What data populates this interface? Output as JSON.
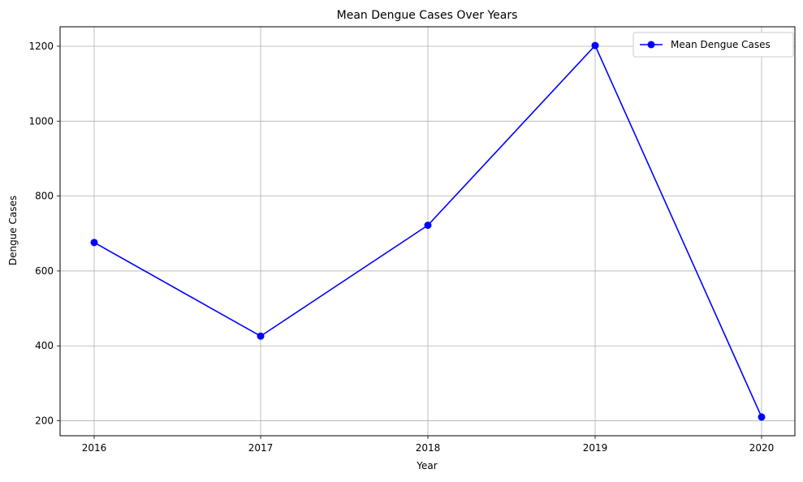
{
  "chart_data": {
    "type": "line",
    "title": "Mean Dengue Cases Over Years",
    "xlabel": "Year",
    "ylabel": "Dengue Cases",
    "x": [
      "2016",
      "2017",
      "2018",
      "2019",
      "2020"
    ],
    "series": [
      {
        "name": "Mean Dengue Cases",
        "values": [
          676,
          426,
          722,
          1202,
          210
        ],
        "color": "#0000ff",
        "marker": "circle"
      }
    ],
    "ylim": [
      160,
      1252
    ],
    "yticks": [
      200,
      400,
      600,
      800,
      1000,
      1200
    ],
    "grid": true,
    "legend_position": "top-right"
  }
}
